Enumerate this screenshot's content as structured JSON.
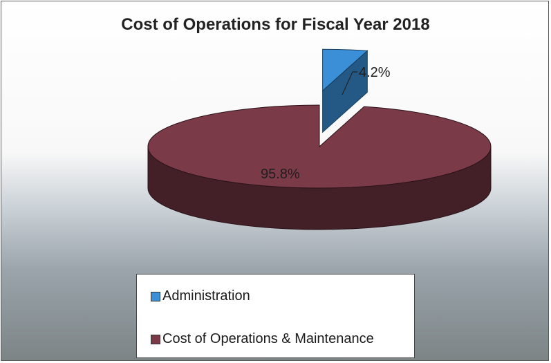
{
  "chart_data": {
    "type": "pie",
    "title": "Cost of Operations for Fiscal Year 2018",
    "series": [
      {
        "name": "Administration",
        "value": 4.2,
        "label": "4.2%",
        "color": "#3a8fd6",
        "exploded": true
      },
      {
        "name": "Cost of Operations & Maintenance",
        "value": 95.8,
        "label": "95.8%",
        "color": "#7a3a48"
      }
    ],
    "legend_position": "bottom",
    "style": "3d-exploded"
  }
}
